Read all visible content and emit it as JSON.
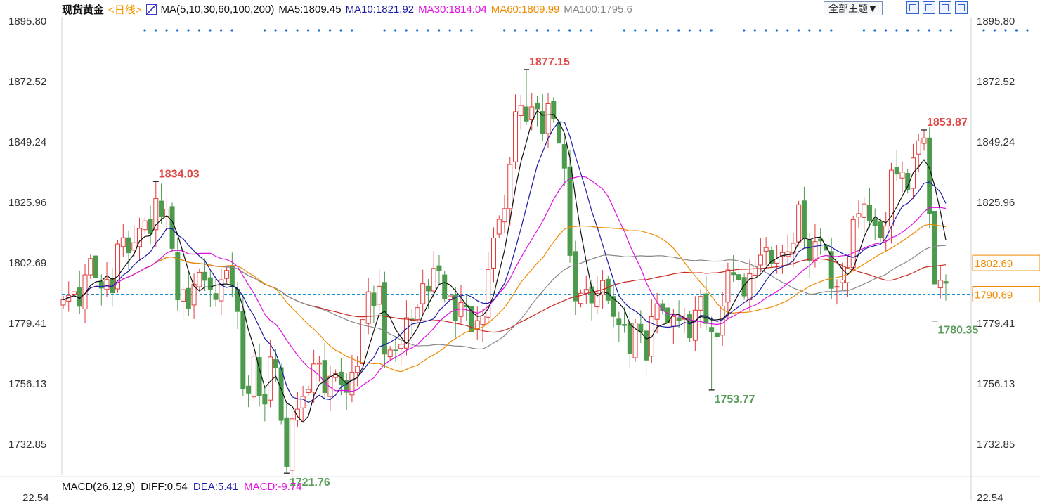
{
  "header": {
    "instrument": "现货黄金",
    "period": "<日线>",
    "ma_params": "MA(5,10,30,60,100,200)",
    "ma_values": [
      {
        "label": "MA5:1809.45",
        "color": "#111111"
      },
      {
        "label": "MA10:1821.92",
        "color": "#1c1ca6"
      },
      {
        "label": "MA30:1814.04",
        "color": "#e010e0"
      },
      {
        "label": "MA60:1809.99",
        "color": "#f08a00"
      },
      {
        "label": "MA100:1795.6",
        "color": "#888888"
      }
    ],
    "theme_button": "全部主题▼"
  },
  "toolbar_icons": [
    "grid-icon",
    "chart-icon",
    "export-icon",
    "fullscreen-icon"
  ],
  "macd": {
    "label": "MACD(26,12,9)",
    "diff": "DIFF:0.54",
    "dea": "DEA:5.41",
    "macd": "MACD:-9.74",
    "axis_value": "22.54"
  },
  "colors": {
    "up": "#e23a3a",
    "down": "#4c9a4c",
    "ma5": "#111111",
    "ma10": "#1c1ca6",
    "ma30": "#e010e0",
    "ma60": "#f08a00",
    "ma100": "#888888",
    "ma200": "#c8281e",
    "price_line": "#1a8fd0",
    "dots": "#1a6fd0"
  },
  "chart_data": {
    "type": "candlestick",
    "y_ticks": [
      "1895.80",
      "1872.52",
      "1849.24",
      "1825.96",
      "1802.69",
      "1779.41",
      "1756.13",
      "1732.85"
    ],
    "ylim": [
      1721.0,
      1895.8
    ],
    "right_price_tags": [
      {
        "label": "1802.69",
        "value": 1802.69,
        "color": "#f08a00"
      },
      {
        "label": "1790.69",
        "value": 1790.69,
        "color": "#f08a00"
      }
    ],
    "current_price_line": 1790.69,
    "annotations": [
      {
        "label": "1834.03",
        "index": 17,
        "value": 1834.03,
        "kind": "high"
      },
      {
        "label": "1721.76",
        "index": 41,
        "value": 1721.76,
        "kind": "low"
      },
      {
        "label": "1877.15",
        "index": 85,
        "value": 1877.15,
        "kind": "high"
      },
      {
        "label": "1753.77",
        "index": 119,
        "value": 1753.77,
        "kind": "low"
      },
      {
        "label": "1853.87",
        "index": 158,
        "value": 1853.87,
        "kind": "high"
      },
      {
        "label": "1780.35",
        "index": 160,
        "value": 1780.35,
        "kind": "low"
      }
    ],
    "close": [
      1788.5,
      1790.2,
      1791.6,
      1786.0,
      1798.1,
      1804.4,
      1797.0,
      1793.0,
      1796.3,
      1791.2,
      1810.0,
      1812.4,
      1806.6,
      1810.5,
      1816.0,
      1818.9,
      1814.0,
      1827.5,
      1820.7,
      1823.4,
      1808.3,
      1788.5,
      1792.4,
      1785.0,
      1794.5,
      1799.1,
      1796.0,
      1792.4,
      1788.6,
      1796.2,
      1799.8,
      1793.6,
      1784.0,
      1754.3,
      1752.6,
      1766.8,
      1751.5,
      1748.4,
      1766.5,
      1762.4,
      1742.1,
      1724.4,
      1742.7,
      1746.4,
      1751.3,
      1754.0,
      1763.8,
      1764.2,
      1752.8,
      1759.1,
      1760.2,
      1755.9,
      1752.9,
      1760.6,
      1762.9,
      1780.9,
      1791.6,
      1786.3,
      1793.7,
      1767.6,
      1769.2,
      1768.8,
      1771.4,
      1781.6,
      1780.4,
      1785.5,
      1794.7,
      1791.9,
      1800.6,
      1799.6,
      1789.0,
      1790.0,
      1780.6,
      1787.4,
      1785.8,
      1776.2,
      1780.5,
      1782.3,
      1800.2,
      1812.3,
      1819.5,
      1823.6,
      1840.6,
      1860.9,
      1863.3,
      1857.3,
      1862.8,
      1862.0,
      1852.5,
      1864.0,
      1858.2,
      1848.8,
      1839.2,
      1805.6,
      1788.1,
      1791.0,
      1792.5,
      1787.3,
      1791.0,
      1795.9,
      1788.3,
      1782.1,
      1779.0,
      1778.6,
      1767.7,
      1779.6,
      1776.0,
      1765.3,
      1782.0,
      1787.0,
      1784.4,
      1779.8,
      1782.1,
      1780.6,
      1781.3,
      1773.9,
      1784.5,
      1789.8,
      1779.4,
      1776.1,
      1774.4,
      1786.1,
      1800.0,
      1798.2,
      1796.1,
      1790.0,
      1798.5,
      1801.4,
      1805.7,
      1808.6,
      1802.6,
      1804.2,
      1806.7,
      1807.0,
      1810.3,
      1825.1,
      1812.3,
      1803.7,
      1810.9,
      1811.2,
      1807.6,
      1792.9,
      1793.6,
      1796.1,
      1800.9,
      1819.4,
      1821.7,
      1825.4,
      1819.1,
      1817.0,
      1812.3,
      1816.9,
      1838.4,
      1836.9,
      1837.7,
      1830.9,
      1843.1,
      1849.7,
      1850.8,
      1821.6,
      1794.6,
      1796.0,
      1794.9
    ],
    "ma_series_order": [
      "MA5",
      "MA10",
      "MA30",
      "MA60",
      "MA100",
      "MA200"
    ]
  }
}
